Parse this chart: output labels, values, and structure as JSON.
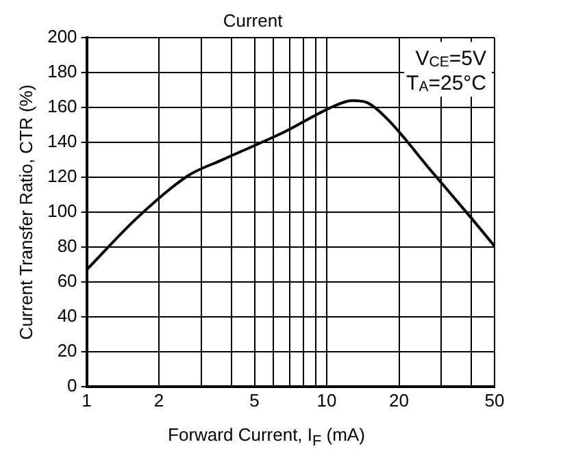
{
  "chart_data": {
    "type": "line",
    "title": "Current",
    "xlabel": "Forward Current, I$_{F}$ (mA)",
    "ylabel": "Current Transfer Ratio, CTR (%)",
    "annotations": [
      "V$_{CE}$=5V",
      "T$_{A}$=25°C"
    ],
    "log": "x",
    "grid": true,
    "legend": false,
    "marker": "none",
    "line_style": "solid",
    "xlim": [
      1,
      50
    ],
    "xticks": [
      1,
      2,
      {
        "value": 3,
        "label": null
      },
      {
        "value": 4,
        "label": null
      },
      5,
      {
        "value": 6,
        "label": null
      },
      {
        "value": 7,
        "label": null
      },
      {
        "value": 8,
        "label": null
      },
      {
        "value": 9,
        "label": null
      },
      10,
      20,
      {
        "value": 30,
        "label": null
      },
      {
        "value": 40,
        "label": null
      },
      50
    ],
    "ylim": [
      0,
      200
    ],
    "yticks": [
      0,
      20,
      40,
      60,
      80,
      100,
      120,
      140,
      160,
      180,
      200
    ],
    "series": [
      {
        "color": "#000000",
        "x": [
          1,
          1.63,
          2.65,
          3.67,
          6.66,
          10.8,
          12.8,
          14.6,
          17.7,
          27.3,
          39.8,
          50
        ],
        "values": [
          67,
          97,
          121,
          130,
          146,
          161,
          164,
          163,
          154,
          123.5,
          97,
          80.5
        ]
      }
    ]
  }
}
